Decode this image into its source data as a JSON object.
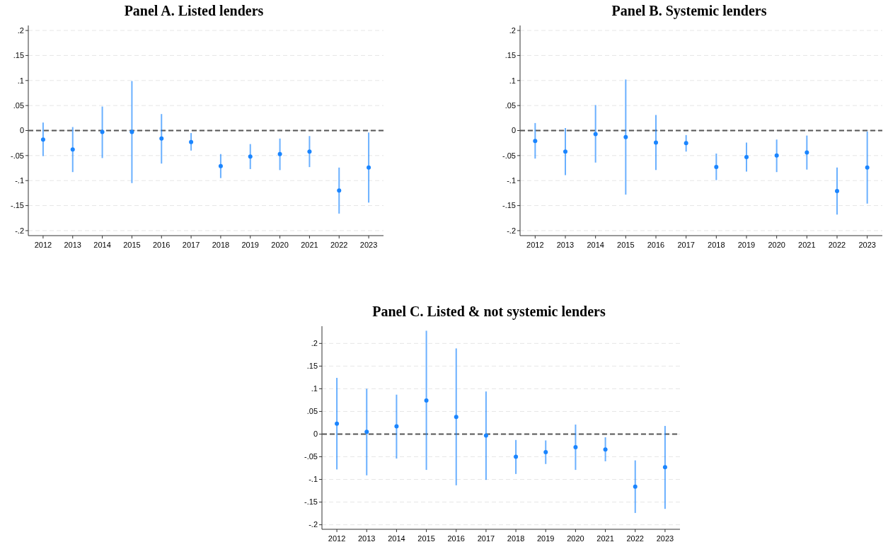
{
  "chart_data": [
    {
      "type": "scatter",
      "title": "Panel A. Listed lenders",
      "categories": [
        "2012",
        "2013",
        "2014",
        "2015",
        "2016",
        "2017",
        "2018",
        "2019",
        "2020",
        "2021",
        "2022",
        "2023"
      ],
      "series": [
        {
          "color": "#1a85ff",
          "values": [
            -0.018,
            -0.038,
            -0.003,
            -0.003,
            -0.016,
            -0.023,
            -0.071,
            -0.052,
            -0.047,
            -0.042,
            -0.12,
            -0.074
          ],
          "errors": [
            [
              -0.051,
              0.016
            ],
            [
              -0.083,
              0.007
            ],
            [
              -0.055,
              0.048
            ],
            [
              -0.105,
              0.099
            ],
            [
              -0.066,
              0.033
            ],
            [
              -0.04,
              -0.005
            ],
            [
              -0.095,
              -0.047
            ],
            [
              -0.077,
              -0.027
            ],
            [
              -0.079,
              -0.016
            ],
            [
              -0.073,
              -0.011
            ],
            [
              -0.166,
              -0.074
            ],
            [
              -0.144,
              -0.004
            ]
          ]
        }
      ],
      "ylim": [
        -0.21,
        0.21
      ],
      "yticks": [
        {
          "value": -0.2,
          "label": "-.2"
        },
        {
          "value": -0.15,
          "label": "-.15"
        },
        {
          "value": -0.1,
          "label": "-.1"
        },
        {
          "value": -0.05,
          "label": "-.05"
        },
        0,
        {
          "value": 0.05,
          "label": ".05"
        },
        {
          "value": 0.1,
          "label": ".1"
        },
        {
          "value": 0.15,
          "label": ".15"
        },
        {
          "value": 0.2,
          "label": ".2"
        }
      ],
      "grid": "y",
      "marker": "circle",
      "ref_lines": [
        {
          "axis": "y",
          "value": 0,
          "color": "#555555",
          "line_style": "dashed"
        }
      ]
    },
    {
      "type": "scatter",
      "title": "Panel B. Systemic lenders",
      "categories": [
        "2012",
        "2013",
        "2014",
        "2015",
        "2016",
        "2017",
        "2018",
        "2019",
        "2020",
        "2021",
        "2022",
        "2023"
      ],
      "series": [
        {
          "color": "#1a85ff",
          "values": [
            -0.021,
            -0.042,
            -0.007,
            -0.013,
            -0.024,
            -0.025,
            -0.073,
            -0.053,
            -0.05,
            -0.044,
            -0.121,
            -0.074
          ],
          "errors": [
            [
              -0.056,
              0.015
            ],
            [
              -0.089,
              0.005
            ],
            [
              -0.064,
              0.051
            ],
            [
              -0.128,
              0.102
            ],
            [
              -0.079,
              0.031
            ],
            [
              -0.042,
              -0.009
            ],
            [
              -0.099,
              -0.046
            ],
            [
              -0.082,
              -0.024
            ],
            [
              -0.083,
              -0.018
            ],
            [
              -0.078,
              -0.01
            ],
            [
              -0.168,
              -0.074
            ],
            [
              -0.146,
              -0.002
            ]
          ]
        }
      ],
      "ylim": [
        -0.21,
        0.21
      ],
      "yticks": [
        {
          "value": -0.2,
          "label": "-.2"
        },
        {
          "value": -0.15,
          "label": "-.15"
        },
        {
          "value": -0.1,
          "label": "-.1"
        },
        {
          "value": -0.05,
          "label": "-.05"
        },
        0,
        {
          "value": 0.05,
          "label": ".05"
        },
        {
          "value": 0.1,
          "label": ".1"
        },
        {
          "value": 0.15,
          "label": ".15"
        },
        {
          "value": 0.2,
          "label": ".2"
        }
      ],
      "grid": "y",
      "marker": "circle",
      "ref_lines": [
        {
          "axis": "y",
          "value": 0,
          "color": "#555555",
          "line_style": "dashed"
        }
      ]
    },
    {
      "type": "scatter",
      "title": "Panel C. Listed & not systemic lenders",
      "categories": [
        "2012",
        "2013",
        "2014",
        "2015",
        "2016",
        "2017",
        "2018",
        "2019",
        "2020",
        "2021",
        "2022",
        "2023"
      ],
      "series": [
        {
          "color": "#1a85ff",
          "values": [
            0.023,
            0.005,
            0.017,
            0.074,
            0.038,
            -0.003,
            -0.05,
            -0.04,
            -0.029,
            -0.034,
            -0.116,
            -0.073
          ],
          "errors": [
            [
              -0.078,
              0.124
            ],
            [
              -0.091,
              0.1
            ],
            [
              -0.054,
              0.087
            ],
            [
              -0.079,
              0.228
            ],
            [
              -0.113,
              0.189
            ],
            [
              -0.101,
              0.094
            ],
            [
              -0.088,
              -0.013
            ],
            [
              -0.066,
              -0.014
            ],
            [
              -0.079,
              0.021
            ],
            [
              -0.06,
              -0.007
            ],
            [
              -0.174,
              -0.058
            ],
            [
              -0.165,
              0.018
            ]
          ]
        }
      ],
      "ylim": [
        -0.21,
        0.238
      ],
      "yticks": [
        {
          "value": -0.2,
          "label": "-.2"
        },
        {
          "value": -0.15,
          "label": "-.15"
        },
        {
          "value": -0.1,
          "label": "-.1"
        },
        {
          "value": -0.05,
          "label": "-.05"
        },
        {
          "value": 0,
          "label": "0"
        },
        {
          "value": 0.05,
          "label": ".05"
        },
        {
          "value": 0.1,
          "label": ".1"
        },
        {
          "value": 0.15,
          "label": ".15"
        },
        {
          "value": 0.2,
          "label": ".2"
        }
      ],
      "grid": "y",
      "marker": "circle",
      "ref_lines": [
        {
          "axis": "y",
          "value": 0,
          "color": "#555555",
          "line_style": "dashed"
        }
      ]
    }
  ]
}
